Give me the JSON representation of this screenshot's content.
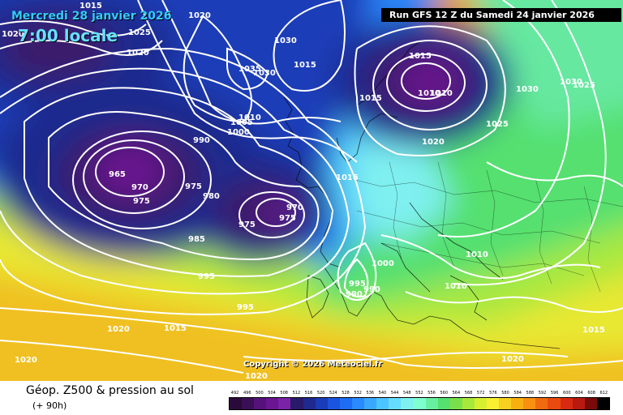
{
  "header": {
    "date": "Mercredi 28 janvier 2026",
    "time": "7:00 locale",
    "run": "Run GFS 12 Z du Samedi 24 janvier 2026"
  },
  "copyright": "Copyright © 2026 Meteociel.fr",
  "footer": {
    "title": "Géop. Z500 & pression au sol",
    "subtitle": "(+ 90h)"
  },
  "scale": {
    "values": [
      "492",
      "496",
      "500",
      "504",
      "508",
      "512",
      "516",
      "520",
      "524",
      "528",
      "532",
      "536",
      "540",
      "544",
      "548",
      "552",
      "556",
      "560",
      "564",
      "568",
      "572",
      "576",
      "580",
      "584",
      "588",
      "592",
      "596",
      "600",
      "604",
      "608",
      "612"
    ],
    "colors": [
      "#2a0a3a",
      "#3a0f55",
      "#55127a",
      "#6a1690",
      "#7a22a8",
      "#2a1a6a",
      "#1f2a8f",
      "#1a3cb8",
      "#1a55e0",
      "#1f6df5",
      "#2b8aff",
      "#3aa8ff",
      "#4cc4ff",
      "#66dcff",
      "#7ff0f0",
      "#7fffd0",
      "#66f0a0",
      "#55e070",
      "#7ae04a",
      "#a8e83a",
      "#d6f030",
      "#f8f030",
      "#f8d020",
      "#f8b010",
      "#f89010",
      "#f06a10",
      "#e84a10",
      "#d82a10",
      "#b81a10",
      "#7a0a0a",
      "#000000"
    ]
  },
  "isobars": [
    "1020",
    "1015",
    "1025",
    "1020",
    "1020",
    "1030",
    "1015",
    "1035",
    "1030",
    "1015",
    "1010",
    "1005",
    "1000",
    "990",
    "1015",
    "1010",
    "1010",
    "1030",
    "1030",
    "1025",
    "1025",
    "1020",
    "1015",
    "965",
    "970",
    "975",
    "975",
    "980",
    "975",
    "970",
    "975",
    "985",
    "995",
    "995",
    "1020",
    "1015",
    "1020",
    "1000",
    "995",
    "990",
    "990",
    "1010",
    "1010",
    "1015",
    "1020",
    "1020"
  ]
}
